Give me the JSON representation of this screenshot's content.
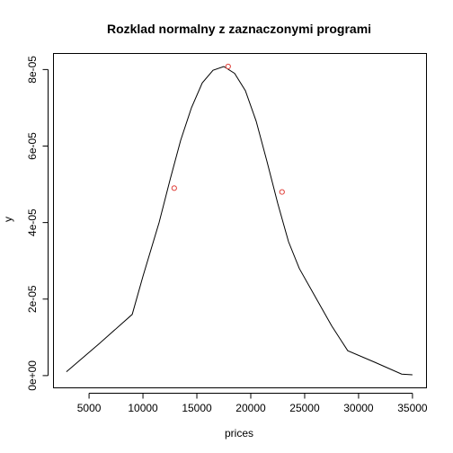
{
  "chart_data": {
    "type": "line",
    "title": "Rozklad normalny z zaznaczonymi programi",
    "xlabel": "prices",
    "ylabel": "y",
    "xlim": [
      1700,
      36300
    ],
    "ylim": [
      -3.2e-06,
      8.42e-05
    ],
    "x_ticks": [
      {
        "value": 5000,
        "label": "5000"
      },
      {
        "value": 10000,
        "label": "10000"
      },
      {
        "value": 15000,
        "label": "15000"
      },
      {
        "value": 20000,
        "label": "20000"
      },
      {
        "value": 25000,
        "label": "25000"
      },
      {
        "value": 30000,
        "label": "30000"
      },
      {
        "value": 35000,
        "label": "35000"
      }
    ],
    "y_ticks": [
      {
        "value": 0,
        "label": "0e+00"
      },
      {
        "value": 2e-05,
        "label": "2e-05"
      },
      {
        "value": 4e-05,
        "label": "4e-05"
      },
      {
        "value": 6e-05,
        "label": "6e-05"
      },
      {
        "value": 8e-05,
        "label": "8e-05"
      }
    ],
    "series": [
      {
        "style": "line",
        "color": "#000000",
        "x": [
          2900,
          6000,
          9000,
          10000,
          11500,
          12500,
          13500,
          14500,
          15500,
          16500,
          17500,
          18500,
          19500,
          20500,
          21500,
          22500,
          23500,
          24500,
          26000,
          27500,
          29000,
          31500,
          34000,
          35000
        ],
        "y": [
          1e-06,
          8.5e-06,
          1.6e-05,
          2.6e-05,
          4e-05,
          5.1e-05,
          6.15e-05,
          7e-05,
          7.65e-05,
          7.98e-05,
          8.08e-05,
          7.9e-05,
          7.45e-05,
          6.65e-05,
          5.6e-05,
          4.5e-05,
          3.5e-05,
          2.8e-05,
          2.05e-05,
          1.3e-05,
          6.5e-06,
          3.5e-06,
          4e-07,
          2e-07
        ]
      },
      {
        "style": "points",
        "color": "#e0403a",
        "x": [
          12900,
          17900,
          22900
        ],
        "y": [
          4.9e-05,
          8.08e-05,
          4.8e-05
        ]
      }
    ],
    "grid": false
  }
}
